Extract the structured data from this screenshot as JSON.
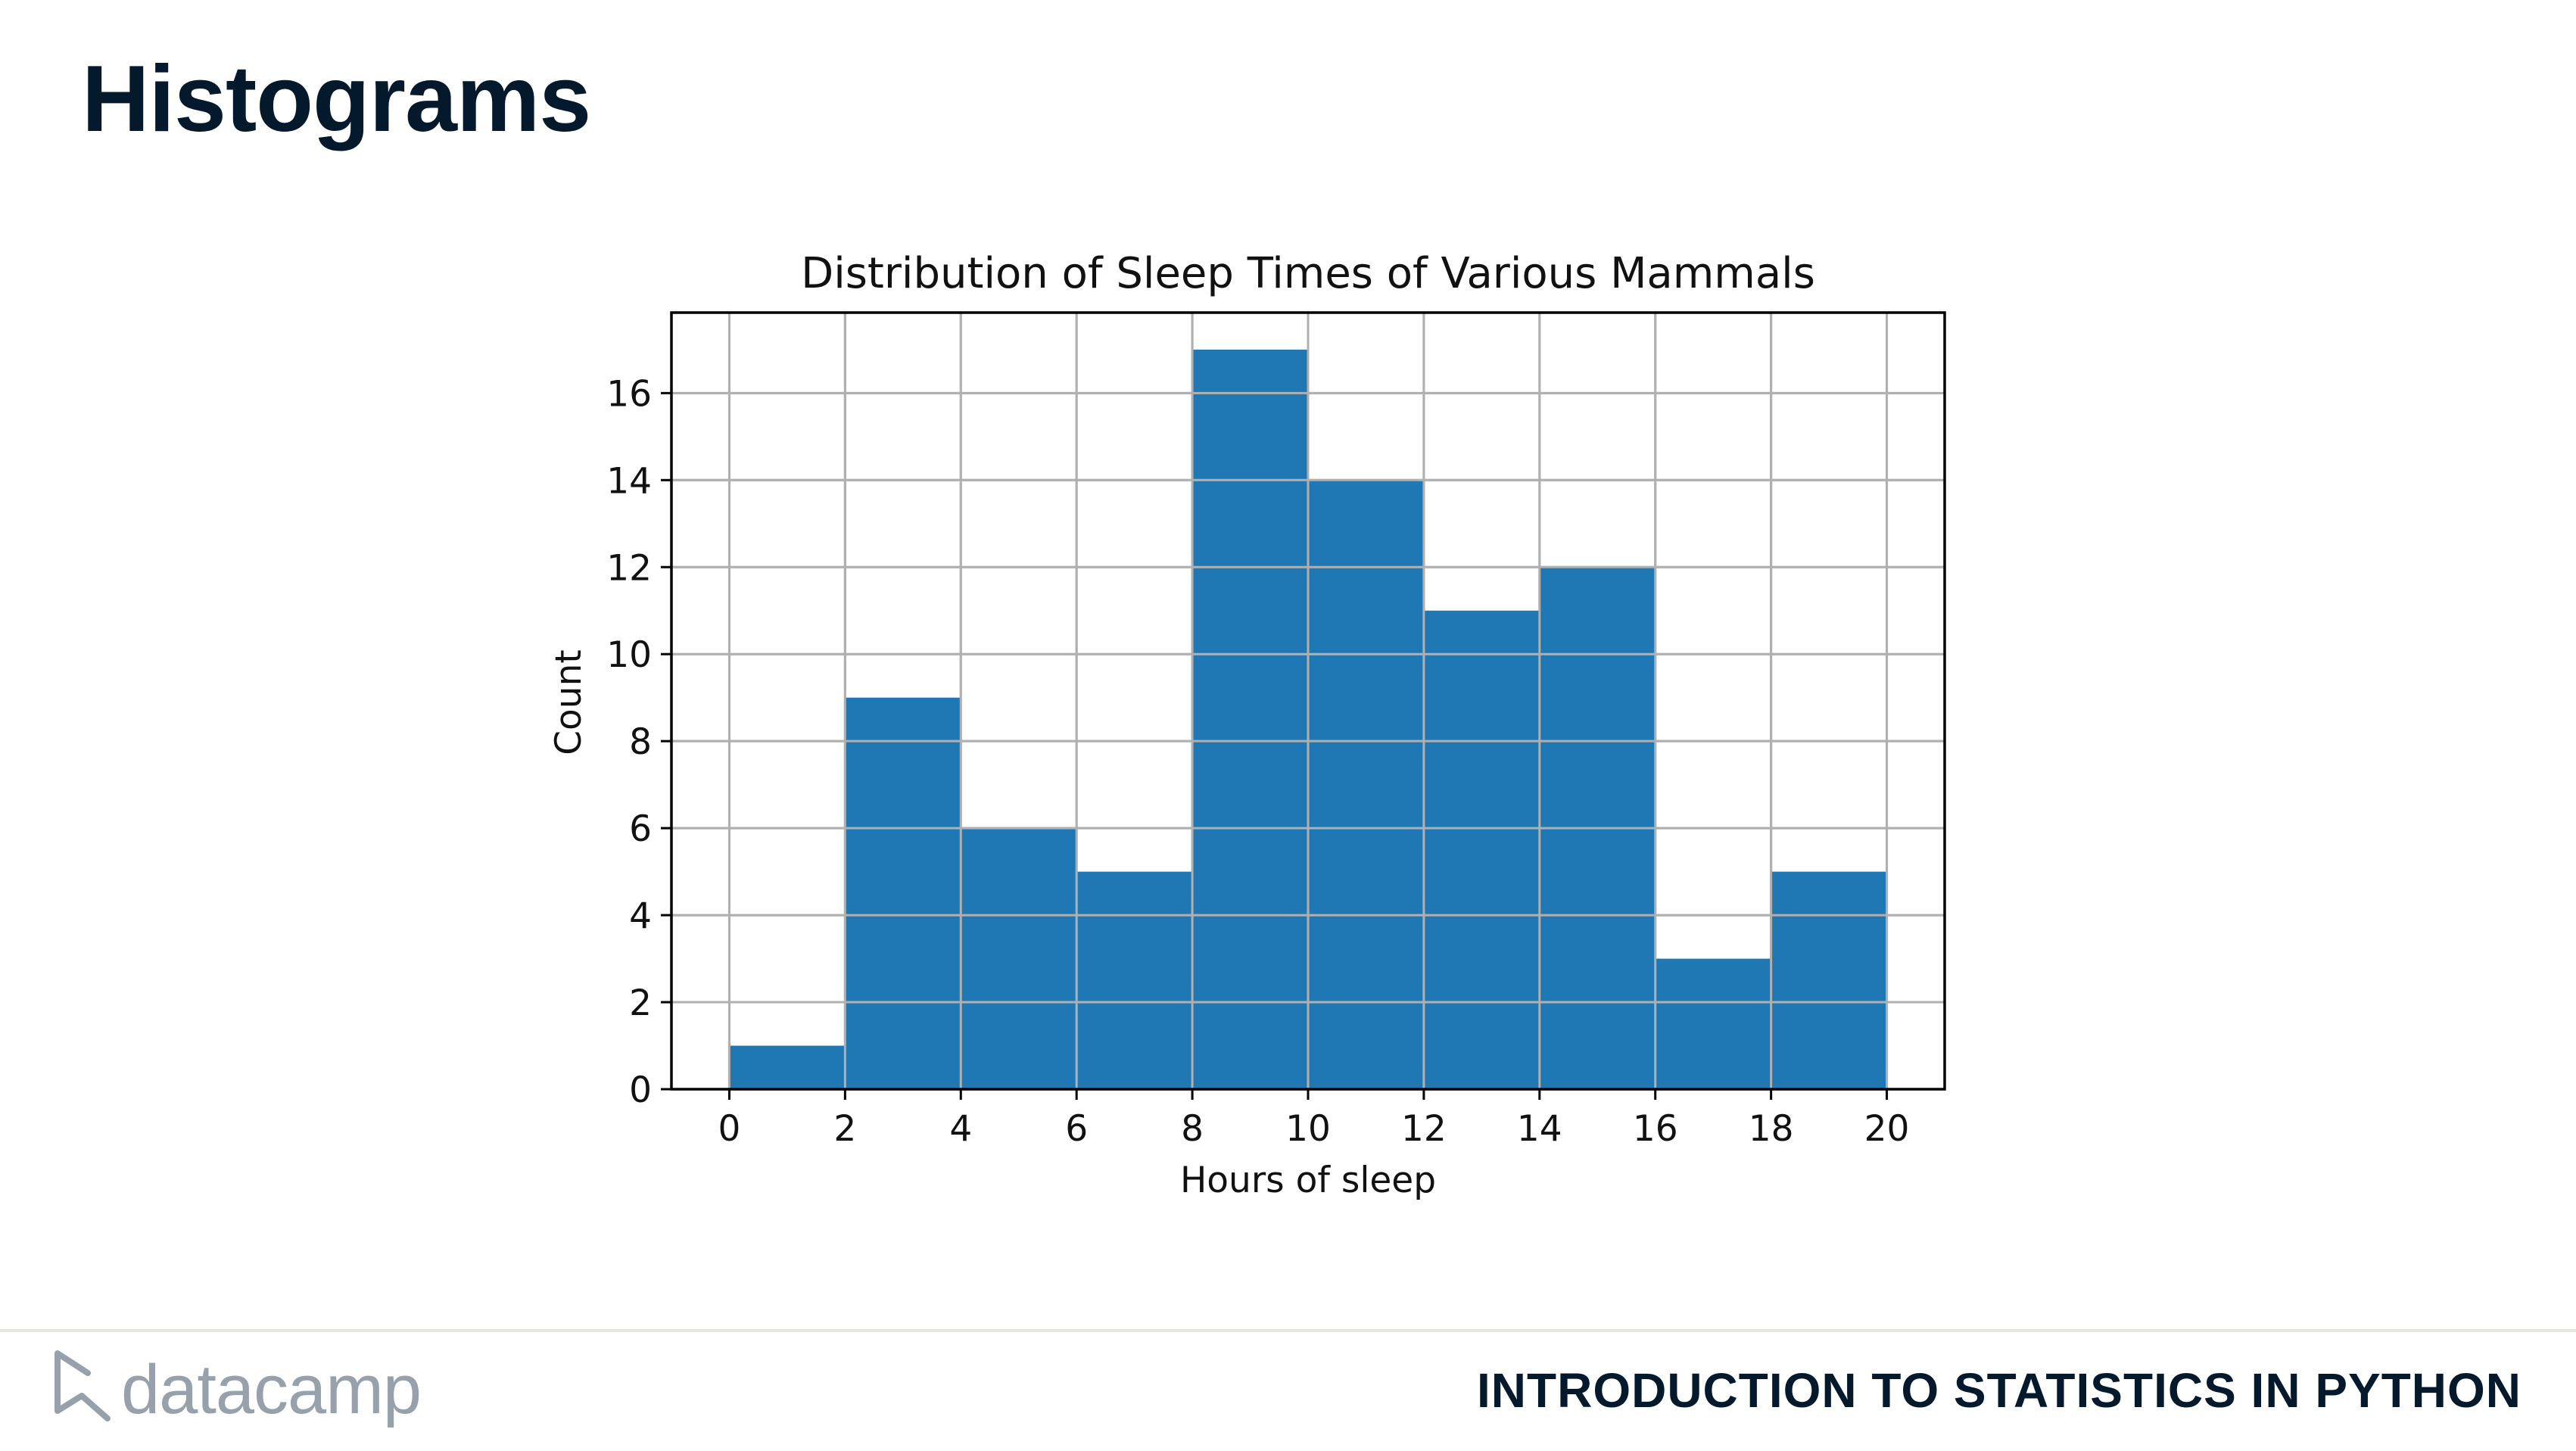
{
  "slide": {
    "title": "Histograms",
    "footer_brand": "datacamp",
    "course_name": "INTRODUCTION TO STATISTICS IN PYTHON"
  },
  "chart_data": {
    "type": "bar",
    "title": "Distribution of Sleep Times of Various Mammals",
    "xlabel": "Hours of sleep",
    "ylabel": "Count",
    "bin_edges": [
      0,
      2,
      4,
      6,
      8,
      10,
      12,
      14,
      16,
      18,
      20
    ],
    "values": [
      1,
      9,
      6,
      5,
      17,
      14,
      11,
      12,
      3,
      5
    ],
    "xlim": [
      -1,
      21
    ],
    "ylim": [
      0,
      17.85
    ],
    "xticks": [
      0,
      2,
      4,
      6,
      8,
      10,
      12,
      14,
      16,
      18,
      20
    ],
    "yticks": [
      0,
      2,
      4,
      6,
      8,
      10,
      12,
      14,
      16
    ],
    "grid": true,
    "bar_color": "#1f77b4",
    "grid_color": "#b0b0b0"
  }
}
